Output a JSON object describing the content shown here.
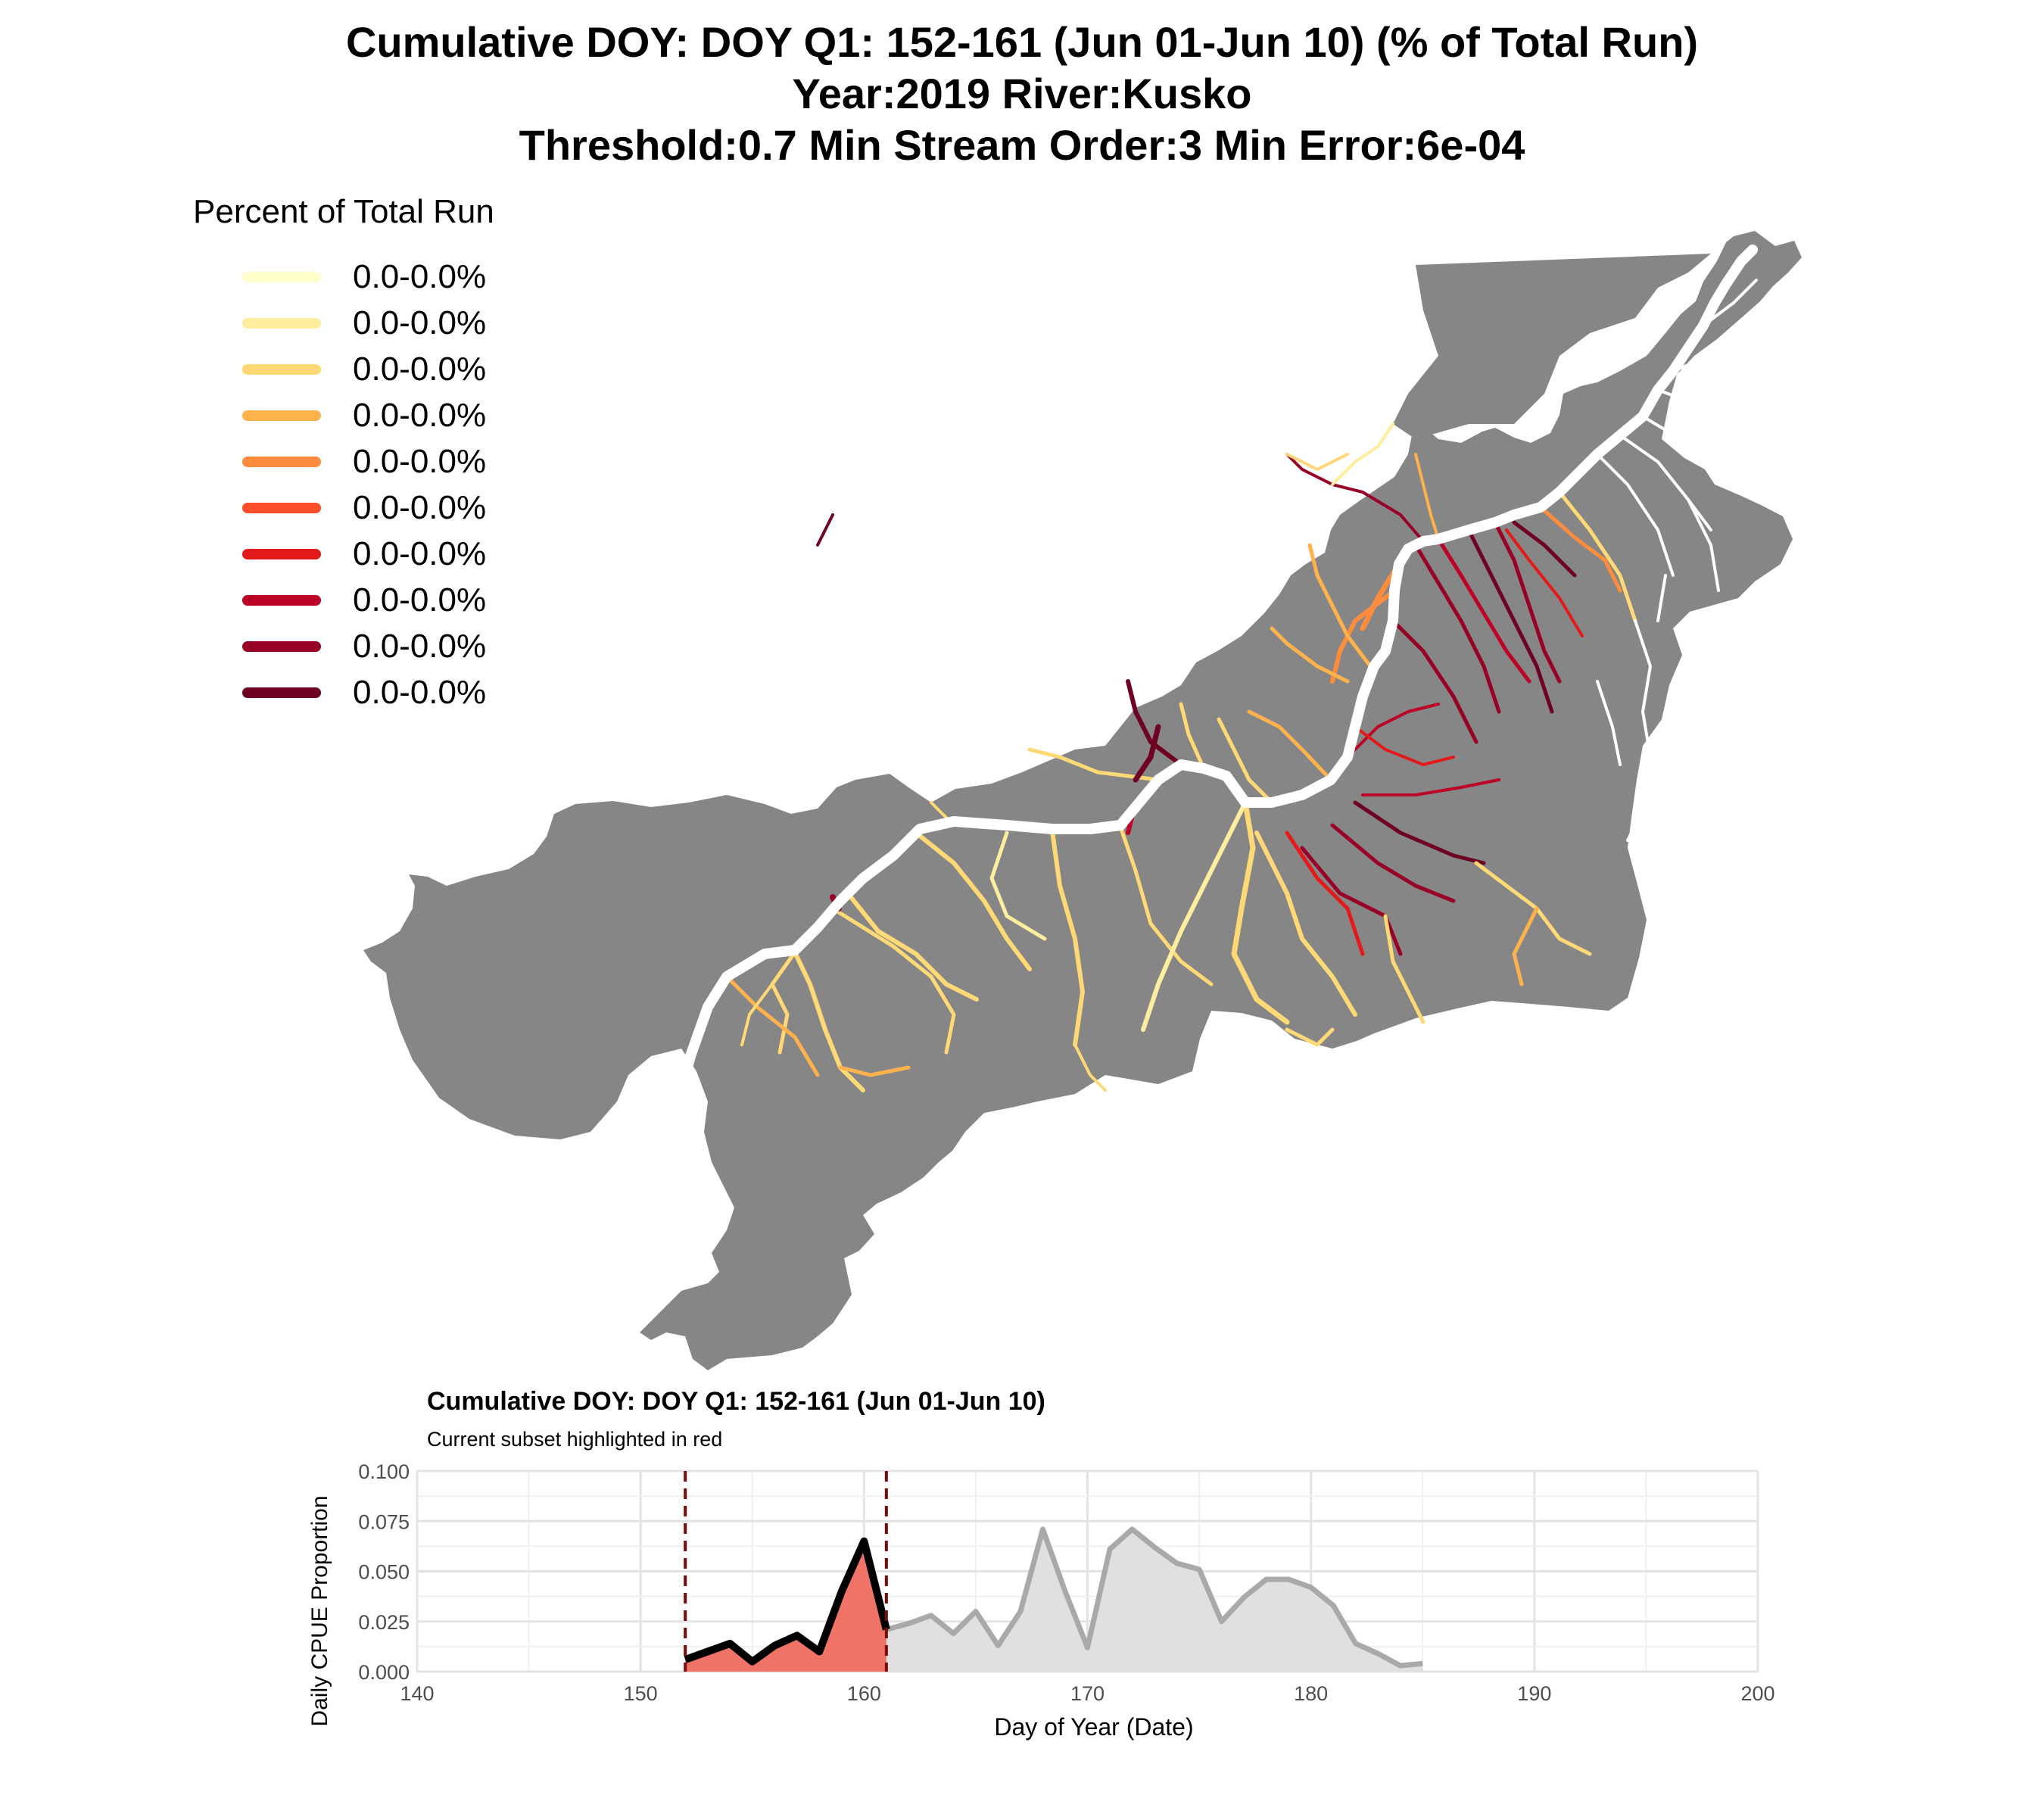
{
  "titles": {
    "line1": "Cumulative DOY: DOY Q1: 152-161 (Jun 01-Jun 10) (% of Total Run)",
    "line2": "Year:2019 River:Kusko",
    "line3": "Threshold:0.7 Min Stream Order:3 Min Error:6e-04"
  },
  "legend": {
    "title": "Percent of Total Run",
    "items": [
      {
        "label": "0.0-0.0%",
        "color": "#FFFFCC"
      },
      {
        "label": "0.0-0.0%",
        "color": "#FFEDA0"
      },
      {
        "label": "0.0-0.0%",
        "color": "#FED976"
      },
      {
        "label": "0.0-0.0%",
        "color": "#FEB24C"
      },
      {
        "label": "0.0-0.0%",
        "color": "#FD8D3C"
      },
      {
        "label": "0.0-0.0%",
        "color": "#FC4E2A"
      },
      {
        "label": "0.0-0.0%",
        "color": "#E31A1C"
      },
      {
        "label": "0.0-0.0%",
        "color": "#BD0026"
      },
      {
        "label": "0.0-0.0%",
        "color": "#980026"
      },
      {
        "label": "0.0-0.0%",
        "color": "#6E0021"
      }
    ]
  },
  "map": {
    "basin_color": "#868686",
    "mainstem_color": "#FFFFFF"
  },
  "chart_data": {
    "type": "area",
    "title": "Cumulative DOY: DOY Q1: 152-161 (Jun 01-Jun 10)",
    "subtitle": "Current subset highlighted in red",
    "xlabel": "Day of Year (Date)",
    "ylabel": "Daily CPUE Proportion",
    "xlim": [
      140,
      200
    ],
    "ylim": [
      0,
      0.1
    ],
    "x_ticks": [
      140,
      150,
      160,
      170,
      180,
      190,
      200
    ],
    "y_ticks": [
      "0.000",
      "0.025",
      "0.050",
      "0.075",
      "0.100"
    ],
    "grid": true,
    "highlight_range": [
      152,
      161
    ],
    "highlight_color": "#F07368",
    "highlight_line_color": "#000000",
    "background_fill_color": "#E0E0E0",
    "background_line_color": "#A9A9A9",
    "vline_color": "#7A0B0B",
    "series": [
      {
        "x": [
          152,
          153,
          154,
          155,
          156,
          157,
          158,
          159,
          160,
          161,
          162,
          163,
          164,
          165,
          166,
          167,
          168,
          169,
          170,
          171,
          172,
          173,
          174,
          175,
          176,
          177,
          178,
          179,
          180,
          181,
          182,
          183,
          184,
          185
        ],
        "values": [
          0.006,
          0.01,
          0.014,
          0.005,
          0.013,
          0.018,
          0.01,
          0.04,
          0.065,
          0.021,
          0.024,
          0.028,
          0.019,
          0.03,
          0.013,
          0.03,
          0.071,
          0.04,
          0.012,
          0.061,
          0.071,
          0.062,
          0.054,
          0.051,
          0.025,
          0.037,
          0.046,
          0.046,
          0.042,
          0.033,
          0.014,
          0.009,
          0.003,
          0.004
        ]
      }
    ]
  }
}
